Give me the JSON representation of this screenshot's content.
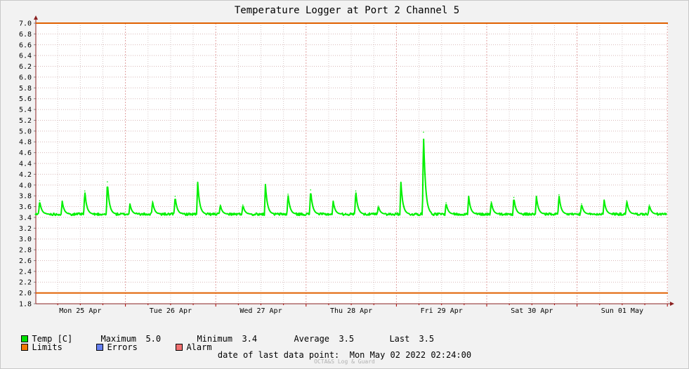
{
  "chart_data": {
    "type": "line",
    "title": "Temperature Logger at Port 2 Channel 5",
    "ylim": [
      1.8,
      7.0
    ],
    "yticks": [
      "7.0",
      "6.8",
      "6.6",
      "6.4",
      "6.2",
      "6.0",
      "5.8",
      "5.6",
      "5.4",
      "5.2",
      "5.0",
      "4.8",
      "4.6",
      "4.4",
      "4.2",
      "4.0",
      "3.8",
      "3.6",
      "3.4",
      "3.2",
      "3.0",
      "2.8",
      "2.6",
      "2.4",
      "2.2",
      "2.0",
      "1.8"
    ],
    "x_day_labels": [
      "Mon 25 Apr",
      "Tue 26 Apr",
      "Wed 27 Apr",
      "Thu 28 Apr",
      "Fri 29 Apr",
      "Sat 30 Apr",
      "Sun 01 May"
    ],
    "limits": [
      7.0,
      2.0
    ],
    "baseline": 3.46,
    "spikes": [
      {
        "t": 0.05,
        "v": 3.71
      },
      {
        "t": 0.3,
        "v": 3.7
      },
      {
        "t": 0.55,
        "v": 3.89
      },
      {
        "t": 0.8,
        "v": 4.06
      },
      {
        "t": 1.05,
        "v": 3.65
      },
      {
        "t": 1.3,
        "v": 3.7
      },
      {
        "t": 1.55,
        "v": 3.79
      },
      {
        "t": 1.8,
        "v": 4.05
      },
      {
        "t": 2.05,
        "v": 3.63
      },
      {
        "t": 2.3,
        "v": 3.63
      },
      {
        "t": 2.55,
        "v": 4.01
      },
      {
        "t": 2.8,
        "v": 3.83
      },
      {
        "t": 3.05,
        "v": 3.91
      },
      {
        "t": 3.3,
        "v": 3.7
      },
      {
        "t": 3.55,
        "v": 3.89
      },
      {
        "t": 3.8,
        "v": 3.61
      },
      {
        "t": 4.05,
        "v": 4.05
      },
      {
        "t": 4.3,
        "v": 4.98
      },
      {
        "t": 4.55,
        "v": 3.67
      },
      {
        "t": 4.8,
        "v": 3.79
      },
      {
        "t": 5.05,
        "v": 3.69
      },
      {
        "t": 5.3,
        "v": 3.77
      },
      {
        "t": 5.55,
        "v": 3.79
      },
      {
        "t": 5.8,
        "v": 3.82
      },
      {
        "t": 6.05,
        "v": 3.65
      },
      {
        "t": 6.3,
        "v": 3.72
      },
      {
        "t": 6.55,
        "v": 3.71
      },
      {
        "t": 6.8,
        "v": 3.63
      }
    ],
    "series_color": "#00f000",
    "limit_color": "#e06000",
    "grid": true
  },
  "legend": {
    "temp": {
      "label": "Temp [C]",
      "color": "#00e000"
    },
    "maximum_label": "Maximum",
    "maximum_value": "5.0",
    "minimum_label": "Minimum",
    "minimum_value": "3.4",
    "average_label": "Average",
    "average_value": "3.5",
    "last_label": "Last",
    "last_value": "3.5",
    "limits": {
      "label": "Limits",
      "color": "#f07800"
    },
    "errors": {
      "label": "Errors",
      "color": "#6680f0"
    },
    "alarm": {
      "label": "Alarm",
      "color": "#f07070"
    }
  },
  "footer": {
    "last_point_label": "date of last data point:",
    "last_point_value": "Mon May 02 2022 02:24:00",
    "credit": "OCTA&S Log & Guard"
  }
}
